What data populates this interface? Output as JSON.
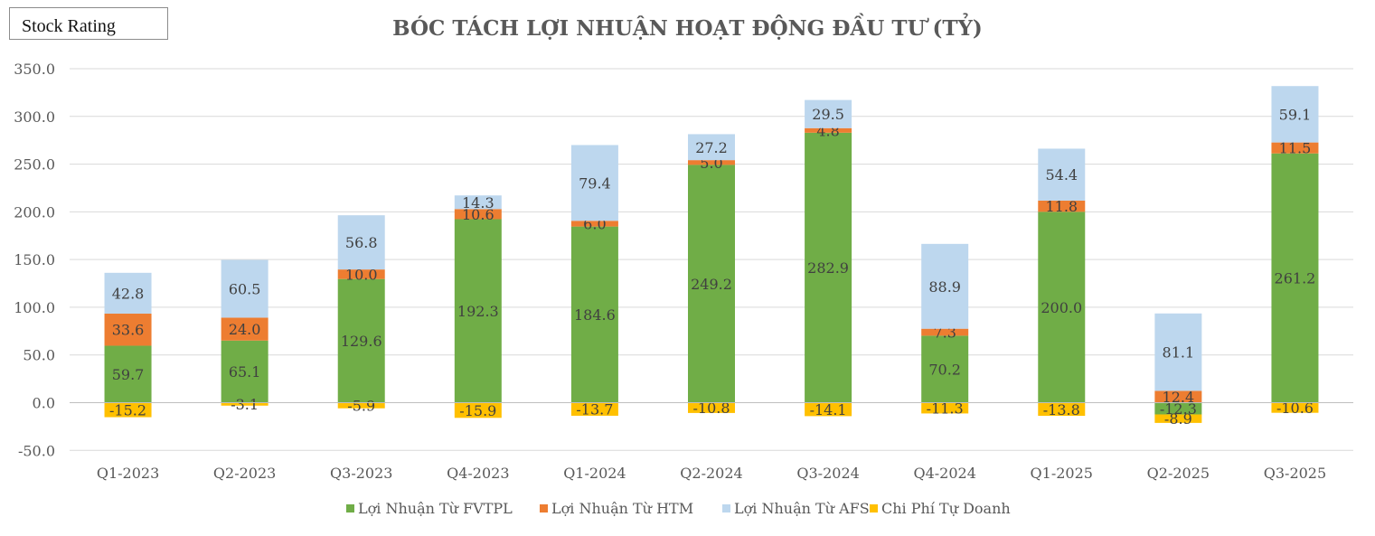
{
  "badge": "Stock Rating",
  "chart_data": {
    "type": "bar",
    "stacked": true,
    "title": "BÓC TÁCH LỢI NHUẬN HOẠT ĐỘNG ĐẦU TƯ (TỶ)",
    "categories": [
      "Q1-2023",
      "Q2-2023",
      "Q3-2023",
      "Q4-2023",
      "Q1-2024",
      "Q2-2024",
      "Q3-2024",
      "Q4-2024",
      "Q1-2025",
      "Q2-2025",
      "Q3-2025"
    ],
    "series": [
      {
        "name": "Lợi Nhuận Từ FVTPL",
        "color": "#70AD47",
        "values": [
          59.7,
          65.1,
          129.6,
          192.3,
          184.6,
          249.2,
          282.9,
          70.2,
          200.0,
          -12.3,
          261.2
        ]
      },
      {
        "name": "Lợi Nhuận Từ HTM",
        "color": "#ED7D31",
        "values": [
          33.6,
          24.0,
          10.0,
          10.6,
          6.0,
          5.0,
          4.8,
          7.3,
          11.8,
          12.4,
          11.5
        ]
      },
      {
        "name": "Lợi Nhuận Từ AFS",
        "color": "#BDD7EE",
        "values": [
          42.8,
          60.5,
          56.8,
          14.3,
          79.4,
          27.2,
          29.5,
          88.9,
          54.4,
          81.1,
          59.1
        ]
      },
      {
        "name": "Chi Phí Tự Doanh",
        "color": "#FFC000",
        "values": [
          -15.2,
          -3.1,
          -5.9,
          -15.9,
          -13.7,
          -10.8,
          -14.1,
          -11.3,
          -13.8,
          -8.9,
          -10.6
        ]
      }
    ],
    "yticks": [
      "350.0",
      "300.0",
      "250.0",
      "200.0",
      "150.0",
      "100.0",
      "50.0",
      "0.0",
      "-50.0"
    ],
    "ylim": [
      -50,
      350
    ],
    "grid": true,
    "legend": "bottom"
  }
}
